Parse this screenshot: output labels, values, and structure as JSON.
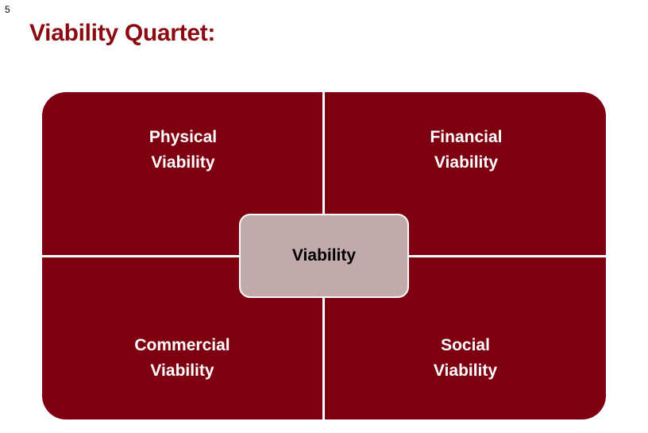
{
  "slide": {
    "number": "5",
    "title": "Viability Quartet:"
  },
  "diagram": {
    "center": "Viability",
    "quadrants": [
      {
        "line1": "Physical",
        "line2": "Viability"
      },
      {
        "line1": "Financial",
        "line2": "Viability"
      },
      {
        "line1": "Commercial",
        "line2": "Viability"
      },
      {
        "line1": "Social",
        "line2": "Viability"
      }
    ]
  },
  "colors": {
    "title": "#8b0a12",
    "quadrant_fill": "#7e0010",
    "center_fill": "#c1aaa9",
    "quadrant_text": "#ffffff"
  }
}
